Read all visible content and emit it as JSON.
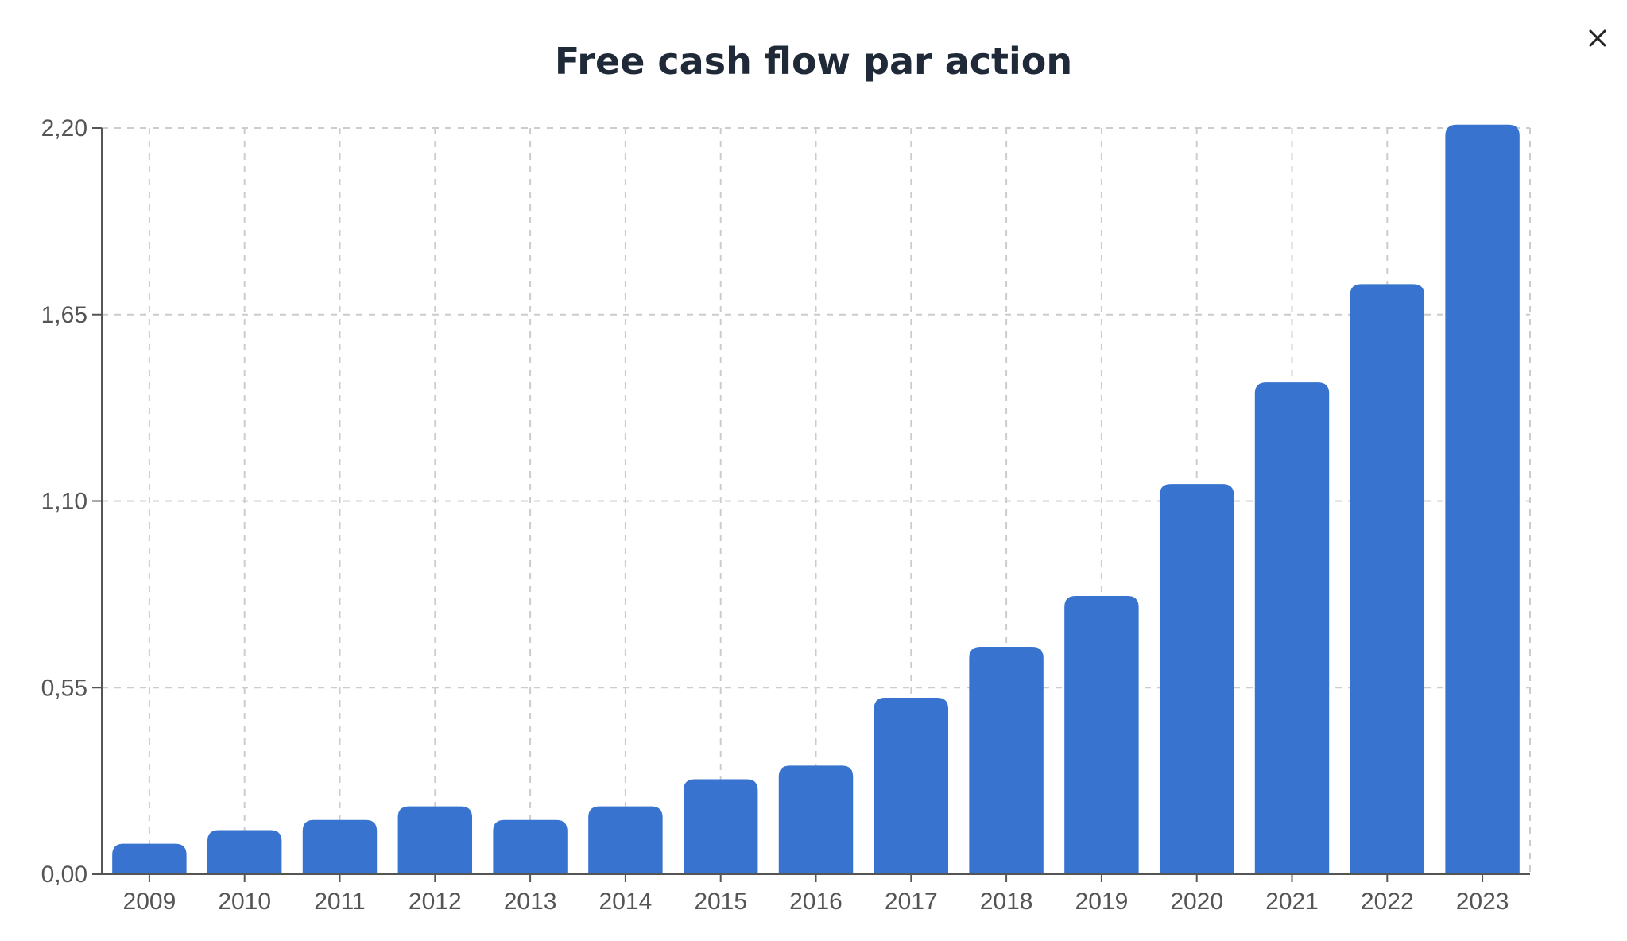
{
  "title": "Free cash flow par action",
  "close_icon": "close-icon",
  "colors": {
    "bar": "#3874cf",
    "grid": "#cccccc",
    "axis": "#555555",
    "title": "#1f2937"
  },
  "chart_data": {
    "type": "bar",
    "title": "Free cash flow par action",
    "categories": [
      "2009",
      "2010",
      "2011",
      "2012",
      "2013",
      "2014",
      "2015",
      "2016",
      "2017",
      "2018",
      "2019",
      "2020",
      "2021",
      "2022",
      "2023"
    ],
    "values": [
      0.09,
      0.13,
      0.16,
      0.2,
      0.16,
      0.2,
      0.28,
      0.32,
      0.52,
      0.67,
      0.82,
      1.15,
      1.45,
      1.74,
      2.21
    ],
    "ylim": [
      0,
      2.2
    ],
    "yticks": [
      "0,00",
      "0,55",
      "1,10",
      "1,65",
      "2,20"
    ],
    "ytick_values": [
      0,
      0.55,
      1.1,
      1.65,
      2.2
    ],
    "xlabel": "",
    "ylabel": "",
    "grid": true,
    "legend": "none"
  }
}
